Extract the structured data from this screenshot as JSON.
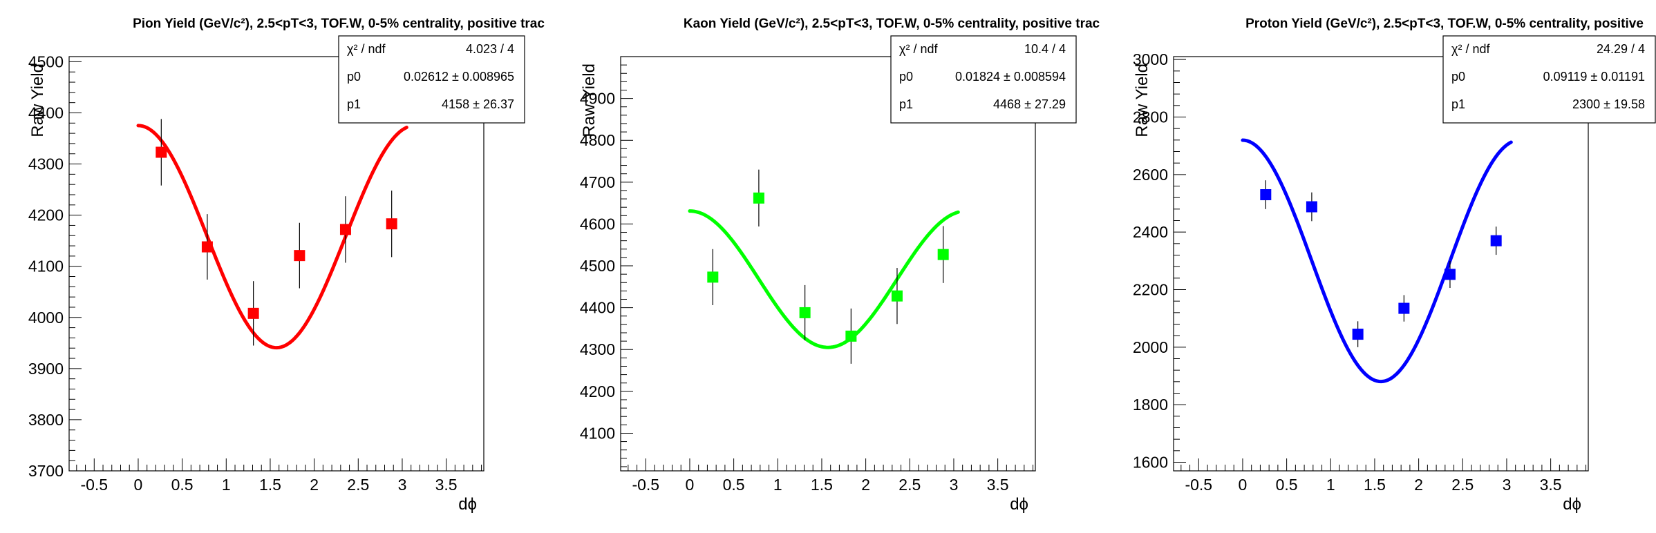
{
  "chart_data": [
    {
      "type": "scatter",
      "title": "Pion Yield (GeV/c²), 2.5<pT<3, TOF.W, 0-5% centrality, positive trac",
      "xlabel": "dϕ",
      "ylabel": "Raw Yield",
      "xlim": [
        -0.785,
        3.927
      ],
      "ylim": [
        3700,
        4510
      ],
      "xticks": [
        "-0.5",
        "0",
        "0.5",
        "1",
        "1.5",
        "2",
        "2.5",
        "3",
        "3.5"
      ],
      "yticks": [
        "3700",
        "3800",
        "3900",
        "4000",
        "4100",
        "4200",
        "4300",
        "4400",
        "4500"
      ],
      "color": "#ff0000",
      "points": {
        "x": [
          0.262,
          0.785,
          1.309,
          1.833,
          2.356,
          2.88
        ],
        "y": [
          4323,
          4138,
          4008,
          4121,
          4172,
          4183
        ],
        "err": [
          65,
          64,
          63,
          64,
          65,
          65
        ]
      },
      "fit": {
        "p0": 0.02612,
        "p1": 4158
      },
      "stats": [
        {
          "label": "χ² / ndf",
          "value": "4.023 / 4"
        },
        {
          "label": "p0",
          "value": "0.02612 ± 0.008965"
        },
        {
          "label": "p1",
          "value": "4158 ± 26.37"
        }
      ]
    },
    {
      "type": "scatter",
      "title": "Kaon Yield (GeV/c²), 2.5<pT<3, TOF.W, 0-5% centrality, positive trac",
      "xlabel": "dϕ",
      "ylabel": "Raw Yield",
      "xlim": [
        -0.785,
        3.927
      ],
      "ylim": [
        4010,
        5000
      ],
      "xticks": [
        "-0.5",
        "0",
        "0.5",
        "1",
        "1.5",
        "2",
        "2.5",
        "3",
        "3.5"
      ],
      "yticks": [
        "4100",
        "4200",
        "4300",
        "4400",
        "4500",
        "4600",
        "4700",
        "4800",
        "4900"
      ],
      "color": "#00ff00",
      "points": {
        "x": [
          0.262,
          0.785,
          1.309,
          1.833,
          2.356,
          2.88
        ],
        "y": [
          4473,
          4662,
          4388,
          4332,
          4428,
          4527
        ],
        "err": [
          67,
          68,
          66,
          66,
          67,
          68
        ]
      },
      "fit": {
        "p0": 0.01824,
        "p1": 4468
      },
      "stats": [
        {
          "label": "χ² / ndf",
          "value": "10.4 / 4"
        },
        {
          "label": "p0",
          "value": "0.01824 ± 0.008594"
        },
        {
          "label": "p1",
          "value": "4468 ± 27.29"
        }
      ]
    },
    {
      "type": "scatter",
      "title": "Proton Yield (GeV/c²), 2.5<pT<3, TOF.W, 0-5% centrality, positive",
      "xlabel": "dϕ",
      "ylabel": "Raw Yield",
      "xlim": [
        -0.785,
        3.927
      ],
      "ylim": [
        1570,
        3010
      ],
      "xticks": [
        "-0.5",
        "0",
        "0.5",
        "1",
        "1.5",
        "2",
        "2.5",
        "3",
        "3.5"
      ],
      "yticks": [
        "1600",
        "1800",
        "2000",
        "2200",
        "2400",
        "2600",
        "2800",
        "3000"
      ],
      "color": "#0000ff",
      "points": {
        "x": [
          0.262,
          0.785,
          1.309,
          1.833,
          2.356,
          2.88
        ],
        "y": [
          2530,
          2488,
          2045,
          2135,
          2253,
          2370
        ],
        "err": [
          50,
          50,
          45,
          46,
          47,
          49
        ]
      },
      "fit": {
        "p0": 0.09119,
        "p1": 2300
      },
      "stats": [
        {
          "label": "χ² / ndf",
          "value": "24.29 / 4"
        },
        {
          "label": "p0",
          "value": "0.09119 ± 0.01191"
        },
        {
          "label": "p1",
          "value": "2300 ± 19.58"
        }
      ]
    }
  ]
}
